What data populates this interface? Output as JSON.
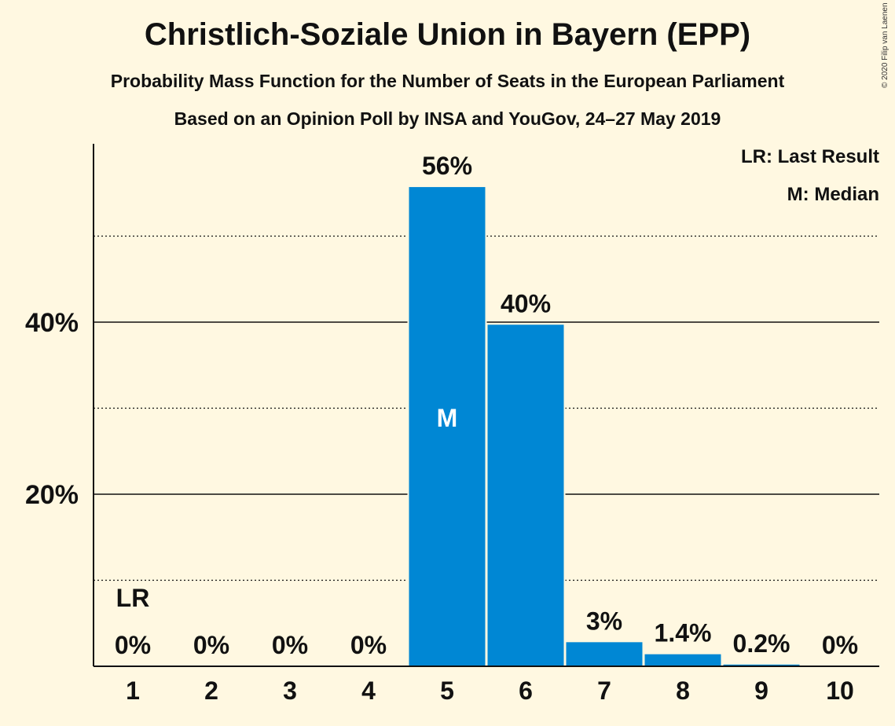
{
  "header": {
    "title": "Christlich-Soziale Union in Bayern (EPP)",
    "subtitle": "Probability Mass Function for the Number of Seats in the European Parliament",
    "source": "Based on an Opinion Poll by INSA and YouGov, 24–27 May 2019",
    "copyright": "© 2020 Filip van Laenen"
  },
  "legend": {
    "last_result": "LR: Last Result",
    "median": "M: Median"
  },
  "colors": {
    "background": "#FFF8E1",
    "bar": "#0087D4",
    "text": "#111111"
  },
  "chart_data": {
    "type": "bar",
    "categories": [
      "1",
      "2",
      "3",
      "4",
      "5",
      "6",
      "7",
      "8",
      "9",
      "10"
    ],
    "values": [
      0,
      0,
      0,
      0,
      55.7,
      39.7,
      2.8,
      1.4,
      0.2,
      0
    ],
    "value_labels": [
      "0%",
      "0%",
      "0%",
      "0%",
      "56%",
      "40%",
      "3%",
      "1.4%",
      "0.2%",
      "0%"
    ],
    "ylim": [
      0,
      60
    ],
    "y_ticks": [
      {
        "value": 20,
        "label": "20%"
      },
      {
        "value": 40,
        "label": "40%"
      }
    ],
    "minor_gridlines": [
      10,
      30,
      50
    ],
    "last_result_category": "1",
    "last_result_label": "LR",
    "median_category": "5",
    "median_label": "M"
  }
}
